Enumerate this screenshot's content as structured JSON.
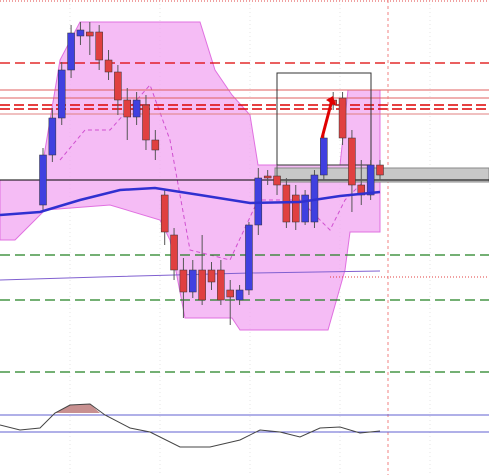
{
  "chart_data": {
    "type": "candlestick",
    "ylim": [
      0,
      475
    ],
    "up_color": "#4040e0",
    "down_color": "#e04040",
    "open": [
      270,
      320,
      357,
      405,
      439,
      443,
      443,
      415,
      403,
      375,
      358,
      370,
      335,
      280,
      240,
      205,
      183,
      205,
      205,
      205,
      185,
      175,
      185,
      250,
      299,
      299,
      290,
      280,
      253,
      253,
      300,
      375,
      377,
      337,
      290,
      280,
      310
    ],
    "close": [
      320,
      357,
      405,
      442,
      445,
      439,
      415,
      403,
      375,
      358,
      375,
      335,
      325,
      243,
      205,
      183,
      205,
      175,
      193,
      175,
      178,
      185,
      250,
      297,
      297,
      290,
      253,
      253,
      280,
      300,
      337,
      370,
      337,
      290,
      280,
      310,
      300
    ],
    "high": [
      327,
      367,
      413,
      450,
      453,
      453,
      450,
      425,
      410,
      387,
      383,
      380,
      345,
      285,
      247,
      217,
      215,
      240,
      213,
      215,
      195,
      190,
      253,
      307,
      305,
      310,
      297,
      290,
      285,
      305,
      345,
      383,
      383,
      345,
      315,
      315,
      315
    ],
    "low": [
      263,
      313,
      350,
      397,
      430,
      420,
      405,
      395,
      360,
      335,
      350,
      325,
      315,
      230,
      195,
      157,
      177,
      170,
      185,
      170,
      150,
      170,
      180,
      240,
      290,
      280,
      247,
      245,
      250,
      247,
      295,
      365,
      330,
      263,
      270,
      275,
      295
    ]
  }
}
